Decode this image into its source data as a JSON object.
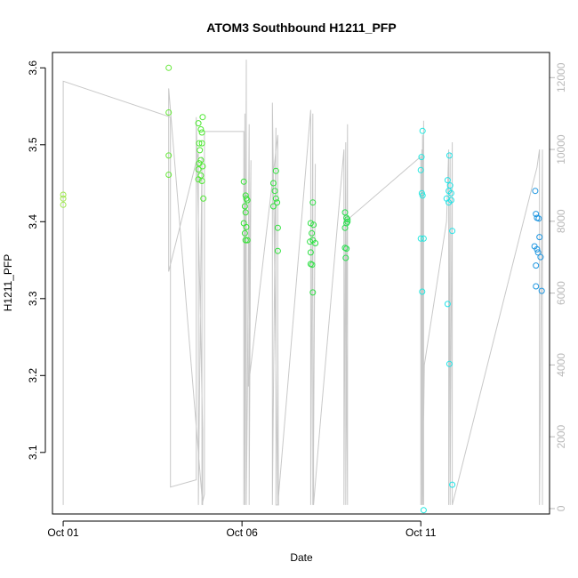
{
  "chart_data": {
    "type": "scatter",
    "title": "ATOM3 Southbound H1211_PFP",
    "xlabel": "Date",
    "ylabel": "H1211_PFP",
    "x_ticks": [
      {
        "label": "Oct 01",
        "day": 1
      },
      {
        "label": "Oct 06",
        "day": 6
      },
      {
        "label": "Oct 11",
        "day": 11
      }
    ],
    "xlim_days": [
      0.7,
      14.6
    ],
    "ylim": [
      3.02,
      3.62
    ],
    "y_ticks": [
      3.1,
      3.2,
      3.3,
      3.4,
      3.5,
      3.6
    ],
    "y2lim": [
      -150,
      12700
    ],
    "y2_ticks": [
      0,
      2000,
      4000,
      6000,
      8000,
      10000,
      12000
    ],
    "grid": false,
    "legend": "none",
    "colors": {
      "gray_line": "#c8c8c8",
      "points_start": "#9ee84c",
      "points_mid": "#22e02a",
      "points_cyan": "#20e8e8",
      "points_end": "#1e90e0"
    },
    "series": [
      {
        "kind": "points",
        "points": [
          {
            "x": 1.0,
            "y": 3.435,
            "c": "#9ee84c"
          },
          {
            "x": 1.0,
            "y": 3.43,
            "c": "#9ee84c"
          },
          {
            "x": 1.0,
            "y": 3.422,
            "c": "#9ee84c"
          },
          {
            "x": 3.95,
            "y": 3.6,
            "c": "#66e83a"
          },
          {
            "x": 3.95,
            "y": 3.542,
            "c": "#66e83a"
          },
          {
            "x": 3.95,
            "y": 3.486,
            "c": "#66e83a"
          },
          {
            "x": 3.95,
            "y": 3.461,
            "c": "#66e83a"
          },
          {
            "x": 4.78,
            "y": 3.528,
            "c": "#4ee832"
          },
          {
            "x": 4.8,
            "y": 3.502,
            "c": "#4ee832"
          },
          {
            "x": 4.8,
            "y": 3.476,
            "c": "#4ee832"
          },
          {
            "x": 4.78,
            "y": 3.468,
            "c": "#4ee832"
          },
          {
            "x": 4.78,
            "y": 3.455,
            "c": "#4ee832"
          },
          {
            "x": 4.85,
            "y": 3.52,
            "c": "#4ee832"
          },
          {
            "x": 4.88,
            "y": 3.516,
            "c": "#4ee832"
          },
          {
            "x": 4.88,
            "y": 3.502,
            "c": "#4ee832"
          },
          {
            "x": 4.9,
            "y": 3.536,
            "c": "#4ee832"
          },
          {
            "x": 4.85,
            "y": 3.48,
            "c": "#4ee832"
          },
          {
            "x": 4.9,
            "y": 3.472,
            "c": "#4ee832"
          },
          {
            "x": 4.85,
            "y": 3.46,
            "c": "#4ee832"
          },
          {
            "x": 4.88,
            "y": 3.453,
            "c": "#4ee832"
          },
          {
            "x": 4.92,
            "y": 3.43,
            "c": "#4ee832"
          },
          {
            "x": 4.82,
            "y": 3.493,
            "c": "#4ee832"
          },
          {
            "x": 6.05,
            "y": 3.452,
            "c": "#36e436"
          },
          {
            "x": 6.1,
            "y": 3.434,
            "c": "#36e436"
          },
          {
            "x": 6.12,
            "y": 3.43,
            "c": "#36e436"
          },
          {
            "x": 6.08,
            "y": 3.42,
            "c": "#36e436"
          },
          {
            "x": 6.15,
            "y": 3.428,
            "c": "#36e436"
          },
          {
            "x": 6.1,
            "y": 3.412,
            "c": "#36e436"
          },
          {
            "x": 6.05,
            "y": 3.398,
            "c": "#36e436"
          },
          {
            "x": 6.12,
            "y": 3.393,
            "c": "#36e436"
          },
          {
            "x": 6.08,
            "y": 3.385,
            "c": "#36e436"
          },
          {
            "x": 6.1,
            "y": 3.376,
            "c": "#36e436"
          },
          {
            "x": 6.15,
            "y": 3.376,
            "c": "#36e436"
          },
          {
            "x": 6.88,
            "y": 3.45,
            "c": "#30e23c"
          },
          {
            "x": 6.95,
            "y": 3.466,
            "c": "#30e23c"
          },
          {
            "x": 6.92,
            "y": 3.44,
            "c": "#30e23c"
          },
          {
            "x": 6.95,
            "y": 3.43,
            "c": "#30e23c"
          },
          {
            "x": 6.98,
            "y": 3.425,
            "c": "#30e23c"
          },
          {
            "x": 6.88,
            "y": 3.42,
            "c": "#30e23c"
          },
          {
            "x": 7.0,
            "y": 3.392,
            "c": "#30e23c"
          },
          {
            "x": 7.0,
            "y": 3.362,
            "c": "#30e23c"
          },
          {
            "x": 7.92,
            "y": 3.398,
            "c": "#2ee044"
          },
          {
            "x": 8.0,
            "y": 3.396,
            "c": "#2ee044"
          },
          {
            "x": 7.95,
            "y": 3.385,
            "c": "#2ee044"
          },
          {
            "x": 7.98,
            "y": 3.376,
            "c": "#2ee044"
          },
          {
            "x": 7.9,
            "y": 3.374,
            "c": "#2ee044"
          },
          {
            "x": 8.05,
            "y": 3.372,
            "c": "#2ee044"
          },
          {
            "x": 7.92,
            "y": 3.36,
            "c": "#2ee044"
          },
          {
            "x": 7.92,
            "y": 3.345,
            "c": "#2ee044"
          },
          {
            "x": 7.96,
            "y": 3.344,
            "c": "#2ee044"
          },
          {
            "x": 7.98,
            "y": 3.308,
            "c": "#2ee044"
          },
          {
            "x": 7.98,
            "y": 3.425,
            "c": "#2ee044"
          },
          {
            "x": 8.88,
            "y": 3.412,
            "c": "#2ade50"
          },
          {
            "x": 8.92,
            "y": 3.405,
            "c": "#2ade50"
          },
          {
            "x": 8.95,
            "y": 3.4,
            "c": "#2ade50"
          },
          {
            "x": 8.92,
            "y": 3.398,
            "c": "#2ade50"
          },
          {
            "x": 8.88,
            "y": 3.392,
            "c": "#2ade50"
          },
          {
            "x": 8.88,
            "y": 3.366,
            "c": "#2ade50"
          },
          {
            "x": 8.92,
            "y": 3.365,
            "c": "#2ade50"
          },
          {
            "x": 8.9,
            "y": 3.353,
            "c": "#2ade50"
          },
          {
            "x": 8.95,
            "y": 3.403,
            "c": "#2ade50"
          },
          {
            "x": 11.05,
            "y": 3.518,
            "c": "#22e8e0"
          },
          {
            "x": 11.02,
            "y": 3.484,
            "c": "#22e8e0"
          },
          {
            "x": 11.0,
            "y": 3.467,
            "c": "#22e8e0"
          },
          {
            "x": 11.03,
            "y": 3.437,
            "c": "#22e8e0"
          },
          {
            "x": 11.05,
            "y": 3.434,
            "c": "#22e8e0"
          },
          {
            "x": 11.0,
            "y": 3.378,
            "c": "#22e8e0"
          },
          {
            "x": 11.08,
            "y": 3.378,
            "c": "#22e8e0"
          },
          {
            "x": 11.04,
            "y": 3.309,
            "c": "#22e8e0"
          },
          {
            "x": 11.08,
            "y": 3.025,
            "c": "#22e8e0"
          },
          {
            "x": 11.8,
            "y": 3.486,
            "c": "#22e4e8"
          },
          {
            "x": 11.75,
            "y": 3.454,
            "c": "#22e4e8"
          },
          {
            "x": 11.82,
            "y": 3.447,
            "c": "#22e4e8"
          },
          {
            "x": 11.78,
            "y": 3.44,
            "c": "#22e4e8"
          },
          {
            "x": 11.85,
            "y": 3.437,
            "c": "#22e4e8"
          },
          {
            "x": 11.72,
            "y": 3.43,
            "c": "#22e4e8"
          },
          {
            "x": 11.78,
            "y": 3.425,
            "c": "#22e4e8"
          },
          {
            "x": 11.85,
            "y": 3.428,
            "c": "#22e4e8"
          },
          {
            "x": 11.88,
            "y": 3.388,
            "c": "#22e4e8"
          },
          {
            "x": 11.75,
            "y": 3.293,
            "c": "#22e4e8"
          },
          {
            "x": 11.8,
            "y": 3.215,
            "c": "#22e4e8"
          },
          {
            "x": 11.88,
            "y": 3.058,
            "c": "#22e4e8"
          },
          {
            "x": 14.2,
            "y": 3.44,
            "c": "#1e96e0"
          },
          {
            "x": 14.22,
            "y": 3.41,
            "c": "#1e96e0"
          },
          {
            "x": 14.25,
            "y": 3.405,
            "c": "#1e96e0"
          },
          {
            "x": 14.3,
            "y": 3.404,
            "c": "#1e96e0"
          },
          {
            "x": 14.32,
            "y": 3.38,
            "c": "#1e96e0"
          },
          {
            "x": 14.18,
            "y": 3.368,
            "c": "#1e96e0"
          },
          {
            "x": 14.25,
            "y": 3.364,
            "c": "#1e96e0"
          },
          {
            "x": 14.28,
            "y": 3.36,
            "c": "#1e96e0"
          },
          {
            "x": 14.35,
            "y": 3.354,
            "c": "#1e96e0"
          },
          {
            "x": 14.22,
            "y": 3.343,
            "c": "#1e96e0"
          },
          {
            "x": 14.22,
            "y": 3.316,
            "c": "#1e96e0"
          },
          {
            "x": 14.38,
            "y": 3.31,
            "c": "#1e96e0"
          }
        ]
      },
      {
        "kind": "gray-line",
        "axis": "right",
        "x": [
          1.0,
          1.0,
          4.0,
          4.0,
          4.72,
          4.72,
          4.9,
          4.9,
          3.95,
          3.95,
          4.78,
          4.78,
          4.88,
          4.88,
          4.95,
          4.95,
          6.05,
          6.05,
          6.08,
          6.08,
          6.12,
          6.12,
          6.15,
          6.15,
          6.2,
          6.2,
          6.25,
          6.25,
          6.18,
          6.18,
          7.0,
          7.0,
          6.85,
          6.85,
          6.95,
          6.95,
          7.02,
          7.02,
          7.0,
          7.0,
          7.92,
          7.92,
          7.98,
          7.98,
          8.05,
          8.05,
          8.0,
          8.0,
          8.2,
          8.2,
          8.85,
          8.85,
          8.9,
          8.9,
          8.95,
          8.95,
          8.9,
          8.9,
          11.0,
          11.0,
          11.03,
          11.03,
          11.08,
          11.08,
          11.05,
          11.05,
          11.1,
          11.1,
          11.72,
          11.72,
          11.78,
          11.78,
          11.82,
          11.82,
          11.88,
          11.88,
          14.25,
          14.25,
          14.32,
          14.32,
          14.4,
          14.4
        ],
        "y": [
          100,
          11900,
          10900,
          600,
          800,
          10900,
          2200,
          100,
          11700,
          6600,
          9900,
          100,
          9800,
          100,
          400,
          10500,
          10500,
          100,
          11000,
          100,
          12500,
          100,
          3100,
          3100,
          10700,
          100,
          9700,
          9700,
          3400,
          3400,
          10400,
          100,
          11300,
          100,
          10600,
          100,
          100,
          100,
          5000,
          100,
          11100,
          100,
          11000,
          100,
          9600,
          9600,
          1700,
          100,
          2500,
          2500,
          10000,
          100,
          10200,
          100,
          10700,
          100,
          8000,
          8000,
          9800,
          100,
          10000,
          100,
          10800,
          100,
          10400,
          100,
          4000,
          4000,
          8000,
          8000,
          10000,
          100,
          9900,
          100,
          10200,
          100,
          9500,
          9500,
          10000,
          100,
          10000,
          100
        ]
      }
    ]
  }
}
